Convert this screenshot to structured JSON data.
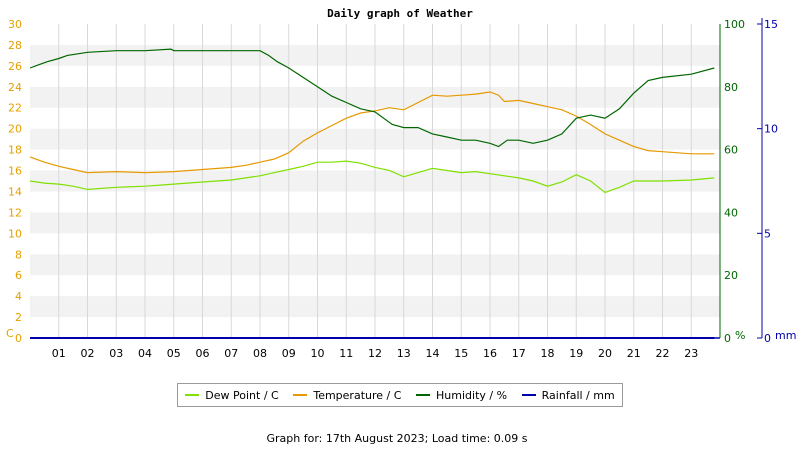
{
  "chart_data": {
    "type": "line",
    "title": "Daily graph of Weather",
    "footer": "Graph for: 17th August 2023; Load time: 0.09 s",
    "x_ticks": [
      "01",
      "02",
      "03",
      "04",
      "05",
      "06",
      "07",
      "08",
      "09",
      "10",
      "11",
      "12",
      "13",
      "14",
      "15",
      "16",
      "17",
      "18",
      "19",
      "20",
      "21",
      "22",
      "23"
    ],
    "x_range": [
      0,
      24
    ],
    "axes": {
      "left": {
        "label": "C",
        "range": [
          0,
          30
        ],
        "ticks": [
          "0",
          "2",
          "4",
          "6",
          "8",
          "10",
          "12",
          "14",
          "16",
          "18",
          "20",
          "22",
          "24",
          "26",
          "28",
          "30"
        ],
        "color": "#e6a000"
      },
      "right1": {
        "label": "%",
        "range": [
          0,
          100
        ],
        "ticks": [
          "0",
          "20",
          "40",
          "60",
          "80",
          "100"
        ],
        "color": "#006600"
      },
      "right2": {
        "label": "mm",
        "range": [
          0,
          15
        ],
        "ticks": [
          "0",
          "5",
          "10",
          "15"
        ],
        "color": "#0000aa"
      }
    },
    "grid": true,
    "legend_position": "bottom",
    "series": [
      {
        "name": "Dew Point / C",
        "color": "#80e000",
        "axis": "left",
        "x": [
          0,
          0.5,
          1,
          1.5,
          2,
          3,
          4,
          5,
          6,
          7,
          7.5,
          8,
          8.5,
          9,
          9.5,
          10,
          10.5,
          11,
          11.5,
          12,
          12.5,
          13,
          13.5,
          14,
          14.5,
          15,
          15.5,
          16,
          16.5,
          17,
          17.5,
          18,
          18.5,
          19,
          19.5,
          20,
          20.5,
          21,
          22,
          23,
          23.8
        ],
        "y": [
          15.0,
          14.8,
          14.7,
          14.5,
          14.2,
          14.4,
          14.5,
          14.7,
          14.9,
          15.1,
          15.3,
          15.5,
          15.8,
          16.1,
          16.4,
          16.8,
          16.8,
          16.9,
          16.7,
          16.3,
          16.0,
          15.4,
          15.8,
          16.2,
          16.0,
          15.8,
          15.9,
          15.7,
          15.5,
          15.3,
          15.0,
          14.5,
          14.9,
          15.6,
          15.0,
          13.9,
          14.4,
          15.0,
          15.0,
          15.1,
          15.3
        ]
      },
      {
        "name": "Temperature / C",
        "color": "#e69900",
        "axis": "left",
        "x": [
          0,
          0.5,
          1,
          1.5,
          2,
          3,
          4,
          5,
          6,
          7,
          7.5,
          8,
          8.5,
          9,
          9.5,
          10,
          10.5,
          11,
          11.5,
          12,
          12.5,
          13,
          13.5,
          14,
          14.5,
          15,
          15.5,
          16,
          16.3,
          16.5,
          17,
          17.5,
          18,
          18.5,
          19,
          19.5,
          20,
          20.5,
          21,
          21.5,
          22,
          23,
          23.8
        ],
        "y": [
          17.3,
          16.8,
          16.4,
          16.1,
          15.8,
          15.9,
          15.8,
          15.9,
          16.1,
          16.3,
          16.5,
          16.8,
          17.1,
          17.7,
          18.8,
          19.6,
          20.3,
          21.0,
          21.5,
          21.7,
          22.0,
          21.8,
          22.5,
          23.2,
          23.1,
          23.2,
          23.3,
          23.5,
          23.2,
          22.6,
          22.7,
          22.4,
          22.1,
          21.8,
          21.2,
          20.4,
          19.5,
          18.9,
          18.3,
          17.9,
          17.8,
          17.6,
          17.6
        ]
      },
      {
        "name": "Humidity / %",
        "color": "#006600",
        "axis": "right1",
        "x": [
          0,
          0.3,
          0.6,
          1,
          1.3,
          2,
          3,
          4,
          4.9,
          5,
          5.5,
          6,
          7,
          8,
          8.3,
          8.6,
          9,
          9.5,
          10,
          10.5,
          11,
          11.5,
          12,
          12.3,
          12.6,
          13,
          13.5,
          14,
          14.5,
          15,
          15.5,
          16,
          16.3,
          16.6,
          17,
          17.5,
          18,
          18.5,
          19,
          19.5,
          20,
          20.5,
          21,
          21.5,
          22,
          23,
          23.8
        ],
        "y": [
          86,
          87,
          88,
          89,
          90,
          91,
          91.5,
          91.5,
          92,
          91.5,
          91.5,
          91.5,
          91.5,
          91.5,
          90,
          88,
          86,
          83,
          80,
          77,
          75,
          73,
          72,
          70,
          68,
          67,
          67,
          65,
          64,
          63,
          63,
          62,
          61,
          63,
          63,
          62,
          63,
          65,
          70,
          71,
          70,
          73,
          78,
          82,
          83,
          84,
          86
        ]
      },
      {
        "name": "Rainfall / mm",
        "color": "#0000aa",
        "axis": "right2",
        "x": [
          0,
          23.8
        ],
        "y": [
          0,
          0
        ]
      }
    ]
  }
}
